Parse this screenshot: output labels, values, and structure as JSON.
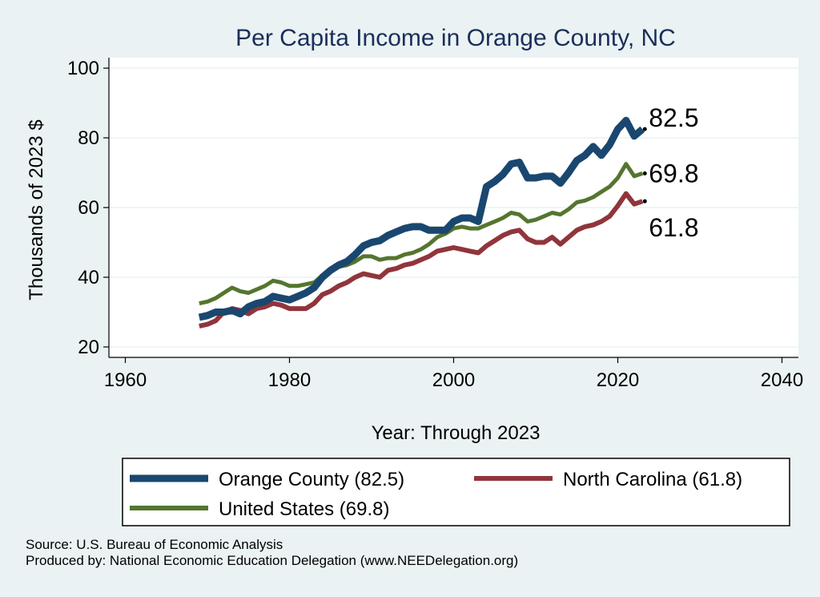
{
  "chart_data": {
    "type": "line",
    "title": "Per Capita Income in Orange County, NC",
    "xlabel": "Year: Through 2023",
    "ylabel": "Thousands of 2023 $",
    "xlim": [
      1958,
      2042
    ],
    "ylim": [
      17,
      103
    ],
    "xticks": [
      1960,
      1980,
      2000,
      2020,
      2040
    ],
    "yticks": [
      20,
      40,
      60,
      80,
      100
    ],
    "grid": true,
    "x": [
      1969,
      1970,
      1971,
      1972,
      1973,
      1974,
      1975,
      1976,
      1977,
      1978,
      1979,
      1980,
      1981,
      1982,
      1983,
      1984,
      1985,
      1986,
      1987,
      1988,
      1989,
      1990,
      1991,
      1992,
      1993,
      1994,
      1995,
      1996,
      1997,
      1998,
      1999,
      2000,
      2001,
      2002,
      2003,
      2004,
      2005,
      2006,
      2007,
      2008,
      2009,
      2010,
      2011,
      2012,
      2013,
      2014,
      2015,
      2016,
      2017,
      2018,
      2019,
      2020,
      2021,
      2022,
      2023
    ],
    "series": [
      {
        "name": "Orange County",
        "legend": "Orange County (82.5)",
        "end_label": "82.5",
        "color": "#1a476f",
        "width": 9,
        "values": [
          28.5,
          29.0,
          30.0,
          30.0,
          30.5,
          29.5,
          31.5,
          32.5,
          33.0,
          34.5,
          34.0,
          33.5,
          34.5,
          35.5,
          37.0,
          40.0,
          42.0,
          43.5,
          44.5,
          46.5,
          49.0,
          50.0,
          50.5,
          52.0,
          53.0,
          54.0,
          54.5,
          54.5,
          53.5,
          53.5,
          53.5,
          56.0,
          57.0,
          57.0,
          56.0,
          66.0,
          67.5,
          69.5,
          72.5,
          73.0,
          68.5,
          68.5,
          69.0,
          69.0,
          67.0,
          70.0,
          73.5,
          75.0,
          77.5,
          75.0,
          78.0,
          82.5,
          85.0,
          80.5,
          82.5
        ]
      },
      {
        "name": "North Carolina",
        "legend": "North Carolina (61.8)",
        "end_label": "61.8",
        "color": "#90353b",
        "width": 6,
        "values": [
          26.0,
          26.5,
          27.5,
          30.0,
          31.0,
          30.5,
          29.5,
          31.0,
          31.5,
          32.5,
          32.0,
          31.0,
          31.0,
          31.0,
          32.5,
          35.0,
          36.0,
          37.5,
          38.5,
          40.0,
          41.0,
          40.5,
          40.0,
          42.0,
          42.5,
          43.5,
          44.0,
          45.0,
          46.0,
          47.5,
          48.0,
          48.5,
          48.0,
          47.5,
          47.0,
          49.0,
          50.5,
          52.0,
          53.0,
          53.5,
          51.0,
          50.0,
          50.0,
          51.5,
          49.5,
          51.5,
          53.5,
          54.5,
          55.0,
          56.0,
          57.5,
          60.5,
          64.0,
          61.0,
          61.8
        ]
      },
      {
        "name": "United States",
        "legend": "United States (69.8)",
        "end_label": "69.8",
        "color": "#55752f",
        "width": 5,
        "values": [
          32.5,
          33.0,
          34.0,
          35.5,
          37.0,
          36.0,
          35.5,
          36.5,
          37.5,
          39.0,
          38.5,
          37.5,
          37.5,
          38.0,
          38.5,
          40.5,
          42.0,
          43.0,
          43.5,
          44.5,
          46.0,
          46.0,
          45.0,
          45.5,
          45.5,
          46.5,
          47.0,
          48.0,
          49.5,
          51.5,
          52.5,
          54.0,
          54.5,
          54.0,
          54.0,
          55.0,
          56.0,
          57.0,
          58.5,
          58.0,
          56.0,
          56.5,
          57.5,
          58.5,
          58.0,
          59.5,
          61.5,
          62.0,
          63.0,
          64.5,
          66.0,
          68.5,
          72.5,
          69.0,
          69.8
        ]
      }
    ]
  },
  "source_lines": [
    "Source: U.S. Bureau of Economic Analysis",
    "Produced by: National Economic Education Delegation (www.NEEDelegation.org)"
  ]
}
